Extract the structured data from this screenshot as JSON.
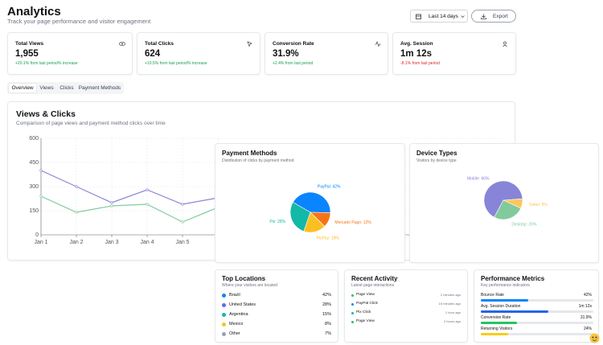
{
  "header": {
    "title": "Analytics",
    "subtitle": "Track your page performance and visitor engagement",
    "date_range": "Last 14 days",
    "export": "Export"
  },
  "stats": [
    {
      "label": "Total Views",
      "value": "1,955",
      "change": "+20.1% from last period% increase",
      "color": "#16a34a"
    },
    {
      "label": "Total Clicks",
      "value": "624",
      "change": "+10.5% from last period% increase",
      "color": "#16a34a"
    },
    {
      "label": "Conversion Rate",
      "value": "31.9%",
      "change": "+2.4% from last period",
      "color": "#16a34a"
    },
    {
      "label": "Avg. Session",
      "value": "1m 12s",
      "change": "-8.1% from last period",
      "color": "#dc2626"
    }
  ],
  "tabs": [
    "Overview",
    "Views",
    "Clicks",
    "Payment Methods"
  ],
  "chart_data": [
    {
      "type": "line",
      "title": "Views & Clicks",
      "subtitle": "Comparison of page views and payment method clicks over time",
      "categories": [
        "Jan 1",
        "Jan 2",
        "Jan 3",
        "Jan 4",
        "Jan 5",
        null
      ],
      "series": [
        {
          "color": "#8884d8",
          "values": [
            400,
            300,
            200,
            280,
            190,
            230
          ]
        },
        {
          "color": "#82ca9d",
          "values": [
            240,
            140,
            180,
            190,
            80,
            170
          ]
        }
      ],
      "ylim": [
        0,
        600
      ],
      "yticks": [
        0,
        150,
        300,
        450,
        600
      ],
      "grid": true
    },
    {
      "type": "pie",
      "title": "Payment Methods",
      "subtitle": "Distribution of clicks by payment method",
      "categories": [
        "PayPal",
        "Mercado Pago",
        "PicPay",
        "Pix"
      ],
      "values": [
        42,
        12,
        18,
        28
      ],
      "value_labels": [
        "PayPal: 42%",
        "Mercado Pago: 12%",
        "PicPay: 18%",
        "Pix: 28%"
      ],
      "colors": [
        "#0a84ff",
        "#f97316",
        "#fbbf24",
        "#14b8a6"
      ]
    },
    {
      "type": "pie",
      "title": "Device Types",
      "subtitle": "Visitors by device type",
      "categories": [
        "Mobile",
        "Tablet",
        "Desktop"
      ],
      "values": [
        66,
        8,
        26
      ],
      "value_labels": [
        "Mobile: 66%",
        "Tablet: 8%",
        "Desktop: 26%"
      ],
      "colors": [
        "#8884d8",
        "#ffc658",
        "#82ca9d"
      ]
    }
  ],
  "locations": {
    "title": "Top Locations",
    "subtitle": "Where your visitors are located",
    "rows": [
      {
        "name": "Brazil",
        "value": "42%",
        "color": "#0a84ff"
      },
      {
        "name": "United States",
        "value": "28%",
        "color": "#6366f1"
      },
      {
        "name": "Argentina",
        "value": "15%",
        "color": "#14b8a6"
      },
      {
        "name": "Mexico",
        "value": "8%",
        "color": "#fbbf24"
      },
      {
        "name": "Other",
        "value": "7%",
        "color": "#94a3b8"
      }
    ]
  },
  "activity": {
    "title": "Recent Activity",
    "subtitle": "Latest page interactions",
    "items": [
      {
        "event": "Page View",
        "time": "2 minutes ago",
        "color": "#22c55e"
      },
      {
        "event": "PayPal Click",
        "time": "15 minutes ago",
        "color": "#0a84ff"
      },
      {
        "event": "Pix Click",
        "time": "1 hour ago",
        "color": "#14b8a6"
      },
      {
        "event": "Page View",
        "time": "2 hours ago",
        "color": "#22c55e"
      }
    ]
  },
  "metrics": {
    "title": "Performance Metrics",
    "subtitle": "Key performance indicators",
    "items": [
      {
        "name": "Bounce Rate",
        "value": "42%",
        "progress": 42,
        "color": "#0a84ff"
      },
      {
        "name": "Avg. Session Duration",
        "value": "1m 12s",
        "progress": 60,
        "color": "#2563eb"
      },
      {
        "name": "Conversion Rate",
        "value": "31.9%",
        "progress": 31.9,
        "color": "#22c55e"
      },
      {
        "name": "Returning Visitors",
        "value": "24%",
        "progress": 24,
        "color": "#facc15"
      }
    ]
  }
}
